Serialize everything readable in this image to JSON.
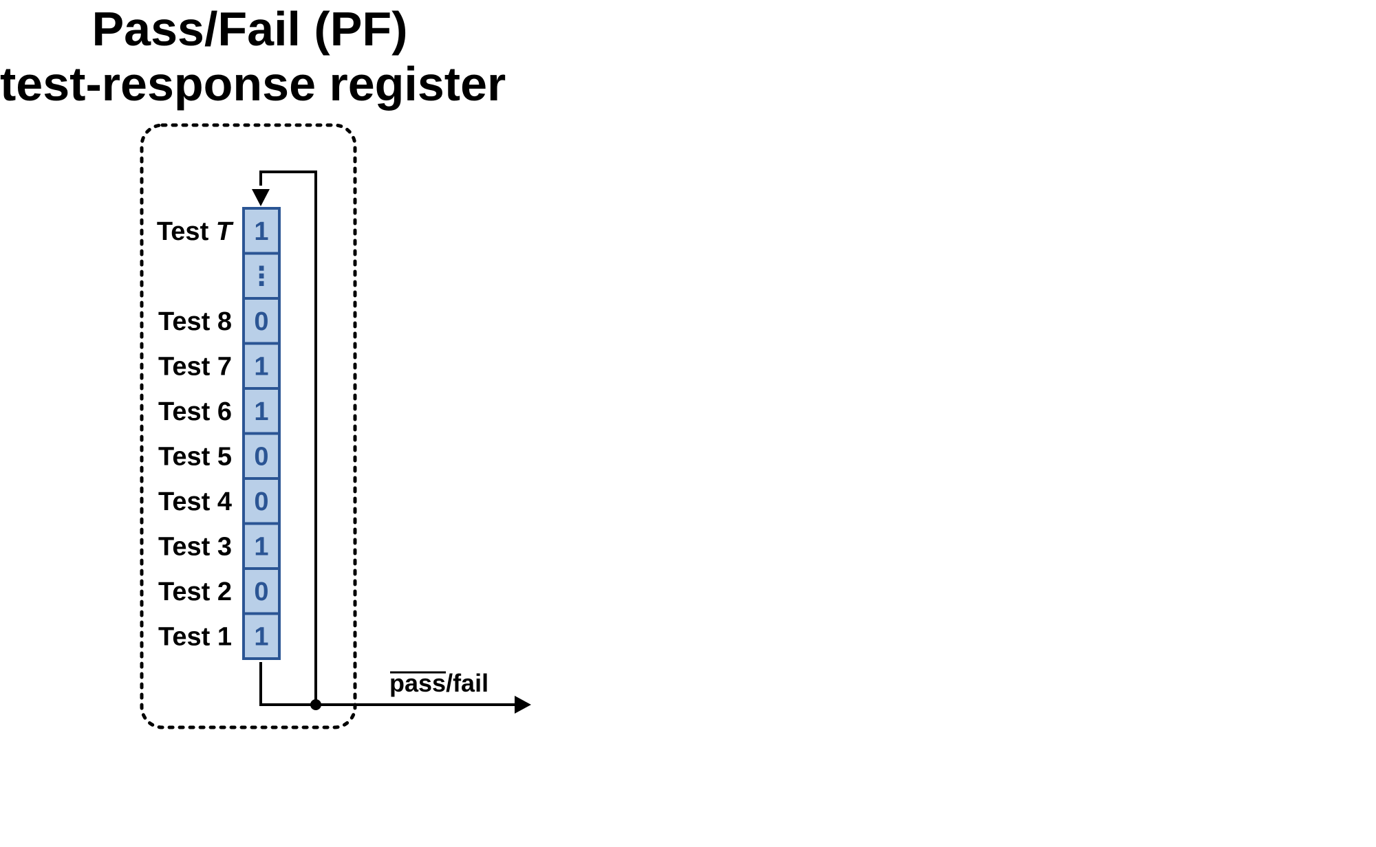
{
  "title": {
    "line1": "Pass/Fail (PF)",
    "line2": "test-response register"
  },
  "register": {
    "cells": [
      {
        "label_prefix": "Test ",
        "label_var": "T",
        "value": "1"
      },
      {
        "label_prefix": "",
        "label_var": "",
        "value": "⋮"
      },
      {
        "label_prefix": "Test 8",
        "label_var": "",
        "value": "0"
      },
      {
        "label_prefix": "Test 7",
        "label_var": "",
        "value": "1"
      },
      {
        "label_prefix": "Test 6",
        "label_var": "",
        "value": "1"
      },
      {
        "label_prefix": "Test 5",
        "label_var": "",
        "value": "0"
      },
      {
        "label_prefix": "Test 4",
        "label_var": "",
        "value": "0"
      },
      {
        "label_prefix": "Test 3",
        "label_var": "",
        "value": "1"
      },
      {
        "label_prefix": "Test 2",
        "label_var": "",
        "value": "0"
      },
      {
        "label_prefix": "Test 1",
        "label_var": "",
        "value": "1"
      }
    ],
    "cell_fill": "#b9cfe8",
    "cell_stroke": "#2b5594",
    "value_color": "#2b5594"
  },
  "output": {
    "overlined": "pass",
    "rest": "/fail"
  }
}
